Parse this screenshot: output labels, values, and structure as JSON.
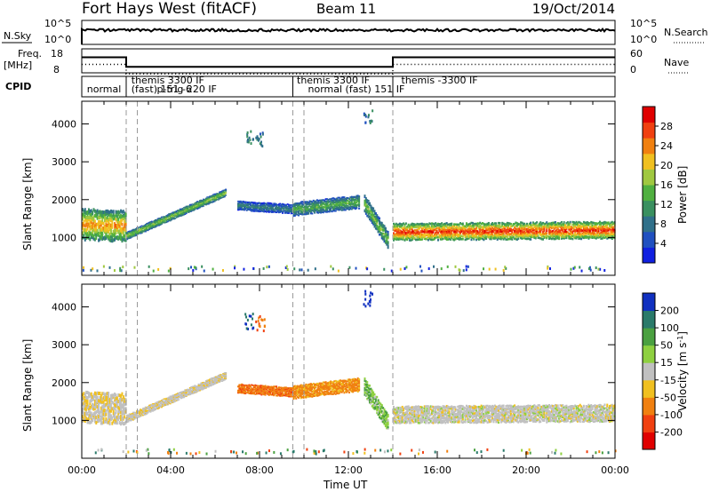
{
  "header": {
    "title": "Fort Hays West (fitACF)",
    "beam": "Beam 11",
    "date": "19/Oct/2014"
  },
  "panels": {
    "nsky": {
      "left_label": "N.Sky",
      "left_ticks": [
        "10^5",
        "10^0"
      ],
      "right_label": "N.Search",
      "right_ticks": [
        "10^5",
        "10^0"
      ]
    },
    "freq": {
      "left_label_1": "Freq.",
      "left_label_2": "[MHz]",
      "left_ticks": [
        "18",
        "8"
      ],
      "right_label": "Nave",
      "right_ticks": [
        "60",
        "0"
      ]
    },
    "cpid": {
      "label": "CPID",
      "segments": [
        {
          "t": 0.15,
          "text": "normal"
        },
        {
          "t": 2.15,
          "text": "themis 3300 IF"
        },
        {
          "t": 2.15,
          "text": "(fast) 151 -6"
        },
        {
          "t": 3.3,
          "text": "p-trig 220 IF"
        },
        {
          "t": 9.6,
          "text": "themis 3300 IF"
        },
        {
          "t": 10.1,
          "text": "normal (fast)  151 IF"
        },
        {
          "t": 14.3,
          "text": "themis -3300 IF"
        }
      ]
    }
  },
  "yaxis_label": "Slant Range [km]",
  "xaxis": {
    "label": "Time UT",
    "ticks": [
      "00:00",
      "04:00",
      "08:00",
      "12:00",
      "16:00",
      "20:00",
      "00:00"
    ]
  },
  "colorbars": {
    "power": {
      "label": "Power [dB]",
      "ticks": [
        "28",
        "24",
        "20",
        "16",
        "12",
        "8",
        "4"
      ]
    },
    "velocity": {
      "label": "Velocity [m s",
      "label_sup": "-1",
      "label_end": "]",
      "ticks": [
        "200",
        "100",
        "50",
        "15",
        "-15",
        "-50",
        "-100",
        "-200"
      ]
    }
  },
  "chart_data": {
    "type": "heatmap",
    "title": "Fort Hays West (fitACF)  Beam 11  19/Oct/2014",
    "xlabel": "Time UT",
    "ylabel": "Slant Range [km]",
    "xlim_hours": [
      0,
      24
    ],
    "ylim_km": [
      0,
      4600
    ],
    "yticks": [
      1000,
      2000,
      3000,
      4000
    ],
    "dashed_lines_hours": [
      2.0,
      2.5,
      9.5,
      10.0,
      14.0
    ],
    "frequency_steps": [
      {
        "t_start": 0,
        "t_end": 2.0,
        "mhz": 14.5
      },
      {
        "t_start": 2.0,
        "t_end": 14.0,
        "mhz": 10.5
      },
      {
        "t_start": 14.0,
        "t_end": 24.0,
        "mhz": 14.5
      }
    ],
    "echo_bands": [
      {
        "t_start": 0.0,
        "t_end": 2.0,
        "r_center_start": 1350,
        "r_center_end": 1300,
        "width": 800,
        "power": 20,
        "velocity": -10
      },
      {
        "t_start": 2.0,
        "t_end": 6.5,
        "r_center_start": 1050,
        "r_center_end": 2200,
        "width": 200,
        "power": 14,
        "velocity": -5
      },
      {
        "t_start": 7.0,
        "t_end": 9.5,
        "r_center_start": 1850,
        "r_center_end": 1750,
        "width": 250,
        "power": 8,
        "velocity": -90
      },
      {
        "t_start": 9.5,
        "t_end": 12.5,
        "r_center_start": 1750,
        "r_center_end": 1950,
        "width": 350,
        "power": 12,
        "velocity": -60
      },
      {
        "t_start": 12.7,
        "t_end": 13.8,
        "r_center_start": 1900,
        "r_center_end": 900,
        "width": 450,
        "power": 14,
        "velocity": 30
      },
      {
        "t_start": 14.0,
        "t_end": 24.0,
        "r_center_start": 1150,
        "r_center_end": 1200,
        "width": 450,
        "power": 24,
        "velocity": 0
      }
    ],
    "scatter_patches": [
      {
        "t": 7.5,
        "r": 3650,
        "power": 8,
        "velocity": 150
      },
      {
        "t": 8.0,
        "r": 3600,
        "power": 8,
        "velocity": -120
      },
      {
        "t": 12.85,
        "r": 4250,
        "power": 8,
        "velocity": 200
      }
    ],
    "power_scale_db": [
      0,
      30
    ],
    "velocity_scale": [
      -250,
      250
    ]
  }
}
